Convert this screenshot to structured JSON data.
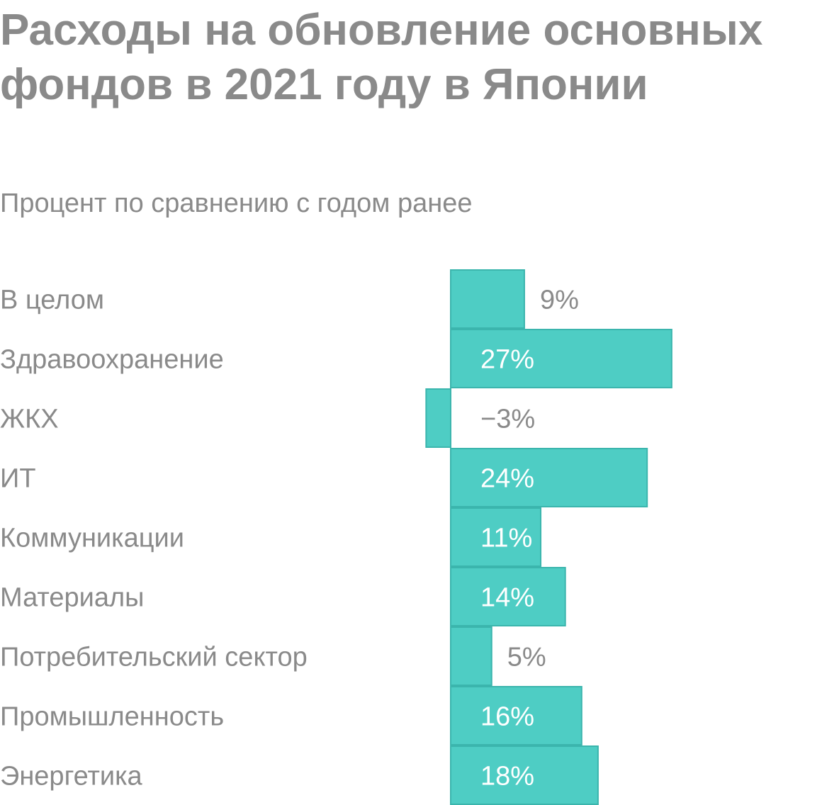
{
  "title": "Расходы на обновление основных фондов в 2021 году в Японии",
  "subtitle": "Процент по сравнению с годом ранее",
  "colors": {
    "bar": "#4ecdc4",
    "bar_stroke": "#3bb5ad",
    "text": "#8a8a8a",
    "inside_label": "#ffffff"
  },
  "chart_data": {
    "type": "bar",
    "orientation": "horizontal",
    "categories": [
      "В целом",
      "Здравоохранение",
      "ЖКХ",
      "ИТ",
      "Коммуникации",
      "Материалы",
      "Потребительский сектор",
      "Промышленность",
      "Энергетика"
    ],
    "values": [
      9,
      27,
      -3,
      24,
      11,
      14,
      5,
      16,
      18
    ],
    "value_labels": [
      "9%",
      "27%",
      "−3%",
      "24%",
      "11%",
      "14%",
      "5%",
      "16%",
      "18%"
    ],
    "unit": "%",
    "title": "Расходы на обновление основных фондов в 2021 году в Японии",
    "subtitle": "Процент по сравнению с годом ранее",
    "grid": false,
    "legend": "none"
  }
}
